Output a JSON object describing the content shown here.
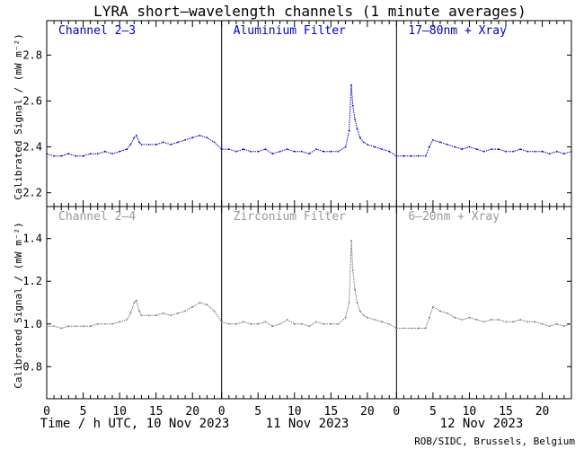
{
  "title": "LYRA short–wavelength channels (1 minute averages)",
  "ylabel": "Calibrated Signal / (mW m⁻²)",
  "footer": "ROB/SIDC, Brussels, Belgium",
  "day_labels": [
    "Time / h UTC, 10 Nov 2023",
    "11 Nov 2023",
    "12 Nov 2023"
  ],
  "x_tick_labels": [
    "0",
    "5",
    "10",
    "15",
    "20"
  ],
  "colors": {
    "top_series": "#0000cc",
    "bottom_series": "#777777",
    "top_label": "#0000cc",
    "bottom_label": "#999999",
    "axis": "#000000"
  },
  "chart_data": [
    {
      "type": "scatter",
      "row": "top",
      "panels": [
        {
          "label": "Channel 2–3",
          "day": "10 Nov 2023"
        },
        {
          "label": "Aluminium Filter",
          "day": "11 Nov 2023"
        },
        {
          "label": "17–80nm + Xray",
          "day": "12 Nov 2023"
        }
      ],
      "x_unit": "hours UTC",
      "xlim": [
        0,
        72
      ],
      "ylim": [
        2.14,
        2.95
      ],
      "yticks": [
        2.2,
        2.4,
        2.6,
        2.8
      ],
      "ytick_labels": [
        "2.2",
        "2.4",
        "2.6",
        "2.8"
      ],
      "series": [
        {
          "x": [
            0,
            1,
            2,
            3,
            4,
            5,
            6,
            7,
            8,
            9,
            10,
            11,
            11.5,
            12,
            12.3,
            12.7,
            13,
            14,
            15,
            16,
            17,
            18,
            19,
            20,
            21,
            22,
            23,
            24,
            25,
            26,
            27,
            28,
            29,
            30,
            31,
            32,
            33,
            34,
            35,
            36,
            37,
            38,
            39,
            40,
            41,
            41.5,
            41.8,
            42,
            42.3,
            42.6,
            43,
            43.5,
            44,
            45,
            46,
            47,
            48,
            49,
            50,
            51,
            52,
            52.5,
            53,
            54,
            55,
            56,
            57,
            58,
            59,
            60,
            61,
            62,
            63,
            64,
            65,
            66,
            67,
            68,
            69,
            70,
            71,
            72
          ],
          "y": [
            2.37,
            2.36,
            2.36,
            2.37,
            2.36,
            2.36,
            2.37,
            2.37,
            2.38,
            2.37,
            2.38,
            2.39,
            2.41,
            2.44,
            2.45,
            2.42,
            2.41,
            2.41,
            2.41,
            2.42,
            2.41,
            2.42,
            2.43,
            2.44,
            2.45,
            2.44,
            2.42,
            2.39,
            2.39,
            2.38,
            2.39,
            2.38,
            2.38,
            2.39,
            2.37,
            2.38,
            2.39,
            2.38,
            2.38,
            2.37,
            2.39,
            2.38,
            2.38,
            2.38,
            2.4,
            2.47,
            2.67,
            2.58,
            2.52,
            2.48,
            2.44,
            2.42,
            2.41,
            2.4,
            2.39,
            2.38,
            2.36,
            2.36,
            2.36,
            2.36,
            2.36,
            2.4,
            2.43,
            2.42,
            2.41,
            2.4,
            2.39,
            2.4,
            2.39,
            2.38,
            2.39,
            2.39,
            2.38,
            2.38,
            2.39,
            2.38,
            2.38,
            2.38,
            2.37,
            2.38,
            2.37,
            2.38
          ]
        }
      ]
    },
    {
      "type": "scatter",
      "row": "bottom",
      "panels": [
        {
          "label": "Channel 2–4",
          "day": "10 Nov 2023"
        },
        {
          "label": "Zirconium Filter",
          "day": "11 Nov 2023"
        },
        {
          "label": "6–20nm + Xray",
          "day": "12 Nov 2023"
        }
      ],
      "x_unit": "hours UTC",
      "xlim": [
        0,
        72
      ],
      "ylim": [
        0.65,
        1.55
      ],
      "yticks": [
        0.8,
        1.0,
        1.2,
        1.4
      ],
      "ytick_labels": [
        "0.8",
        "1.0",
        "1.2",
        "1.4"
      ],
      "series": [
        {
          "x": [
            0,
            1,
            2,
            3,
            4,
            5,
            6,
            7,
            8,
            9,
            10,
            11,
            11.5,
            12,
            12.3,
            12.7,
            13,
            14,
            15,
            16,
            17,
            18,
            19,
            20,
            21,
            22,
            23,
            24,
            25,
            26,
            27,
            28,
            29,
            30,
            31,
            32,
            33,
            34,
            35,
            36,
            37,
            38,
            39,
            40,
            41,
            41.5,
            41.8,
            42,
            42.3,
            42.6,
            43,
            43.5,
            44,
            45,
            46,
            47,
            48,
            49,
            50,
            51,
            52,
            52.5,
            53,
            54,
            55,
            56,
            57,
            58,
            59,
            60,
            61,
            62,
            63,
            64,
            65,
            66,
            67,
            68,
            69,
            70,
            71,
            72
          ],
          "y": [
            0.99,
            0.99,
            0.98,
            0.99,
            0.99,
            0.99,
            0.99,
            1.0,
            1.0,
            1.0,
            1.01,
            1.02,
            1.05,
            1.1,
            1.11,
            1.06,
            1.04,
            1.04,
            1.04,
            1.05,
            1.04,
            1.05,
            1.06,
            1.08,
            1.1,
            1.09,
            1.06,
            1.01,
            1.0,
            1.0,
            1.01,
            1.0,
            1.0,
            1.01,
            0.99,
            1.0,
            1.02,
            1.0,
            1.0,
            0.99,
            1.01,
            1.0,
            1.0,
            1.0,
            1.03,
            1.1,
            1.39,
            1.25,
            1.16,
            1.1,
            1.06,
            1.04,
            1.03,
            1.02,
            1.01,
            1.0,
            0.98,
            0.98,
            0.98,
            0.98,
            0.98,
            1.03,
            1.08,
            1.06,
            1.05,
            1.03,
            1.02,
            1.03,
            1.02,
            1.01,
            1.02,
            1.02,
            1.01,
            1.01,
            1.02,
            1.01,
            1.01,
            1.0,
            0.99,
            1.0,
            0.99,
            1.0
          ]
        }
      ]
    }
  ]
}
